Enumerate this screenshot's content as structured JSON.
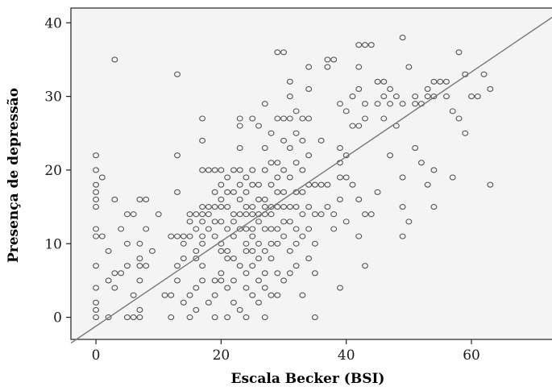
{
  "chart_data": {
    "type": "scatter",
    "title": "",
    "xlabel": "Escala Becker (BSI)",
    "ylabel": "Presença de depressão",
    "xlim": [
      -4,
      73
    ],
    "ylim": [
      -3,
      42
    ],
    "x_ticks": [
      0,
      20,
      40,
      60
    ],
    "y_ticks": [
      0,
      10,
      20,
      30,
      40
    ],
    "grid": false,
    "reference_line": {
      "x": [
        -4,
        73
      ],
      "y": [
        -3.5,
        40.8
      ]
    },
    "series": [
      {
        "points": [
          [
            0,
            0
          ],
          [
            0,
            1
          ],
          [
            0,
            2
          ],
          [
            0,
            4
          ],
          [
            0,
            7
          ],
          [
            0,
            11
          ],
          [
            0,
            12
          ],
          [
            0,
            15
          ],
          [
            0,
            16
          ],
          [
            0,
            17
          ],
          [
            0,
            18
          ],
          [
            0,
            20
          ],
          [
            0,
            22
          ],
          [
            1,
            19
          ],
          [
            1,
            11
          ],
          [
            2,
            5
          ],
          [
            2,
            9
          ],
          [
            2,
            0
          ],
          [
            3,
            35
          ],
          [
            3,
            4
          ],
          [
            3,
            6
          ],
          [
            3,
            16
          ],
          [
            4,
            6
          ],
          [
            4,
            12
          ],
          [
            5,
            10
          ],
          [
            5,
            0
          ],
          [
            5,
            7
          ],
          [
            5,
            14
          ],
          [
            6,
            0
          ],
          [
            6,
            3
          ],
          [
            6,
            14
          ],
          [
            7,
            0
          ],
          [
            7,
            7
          ],
          [
            7,
            8
          ],
          [
            7,
            10
          ],
          [
            7,
            16
          ],
          [
            7,
            5
          ],
          [
            7,
            1
          ],
          [
            8,
            7
          ],
          [
            8,
            12
          ],
          [
            8,
            16
          ],
          [
            9,
            9
          ],
          [
            10,
            14
          ],
          [
            11,
            3
          ],
          [
            12,
            3
          ],
          [
            12,
            11
          ],
          [
            12,
            0
          ],
          [
            13,
            33
          ],
          [
            13,
            22
          ],
          [
            13,
            17
          ],
          [
            13,
            11
          ],
          [
            13,
            7
          ],
          [
            13,
            5
          ],
          [
            14,
            10
          ],
          [
            14,
            8
          ],
          [
            14,
            11
          ],
          [
            14,
            2
          ],
          [
            15,
            14
          ],
          [
            15,
            13
          ],
          [
            15,
            11
          ],
          [
            15,
            3
          ],
          [
            15,
            0
          ],
          [
            16,
            14
          ],
          [
            16,
            12
          ],
          [
            16,
            9
          ],
          [
            16,
            8
          ],
          [
            16,
            4
          ],
          [
            16,
            1
          ],
          [
            17,
            27
          ],
          [
            17,
            24
          ],
          [
            17,
            20
          ],
          [
            17,
            15
          ],
          [
            17,
            14
          ],
          [
            17,
            13
          ],
          [
            17,
            11
          ],
          [
            17,
            10
          ],
          [
            17,
            7
          ],
          [
            17,
            5
          ],
          [
            18,
            20
          ],
          [
            18,
            15
          ],
          [
            18,
            14
          ],
          [
            18,
            12
          ],
          [
            18,
            2
          ],
          [
            19,
            20
          ],
          [
            19,
            17
          ],
          [
            19,
            15
          ],
          [
            19,
            13
          ],
          [
            19,
            11
          ],
          [
            19,
            5
          ],
          [
            19,
            3
          ],
          [
            19,
            0
          ],
          [
            20,
            20
          ],
          [
            20,
            18
          ],
          [
            20,
            16
          ],
          [
            20,
            15
          ],
          [
            20,
            13
          ],
          [
            20,
            10
          ],
          [
            20,
            9
          ],
          [
            20,
            6
          ],
          [
            20,
            5
          ],
          [
            21,
            19
          ],
          [
            21,
            17
          ],
          [
            21,
            15
          ],
          [
            21,
            12
          ],
          [
            21,
            9
          ],
          [
            21,
            8
          ],
          [
            21,
            4
          ],
          [
            21,
            0
          ],
          [
            22,
            20
          ],
          [
            22,
            17
          ],
          [
            22,
            14
          ],
          [
            22,
            13
          ],
          [
            22,
            11
          ],
          [
            22,
            8
          ],
          [
            22,
            5
          ],
          [
            22,
            2
          ],
          [
            23,
            27
          ],
          [
            23,
            26
          ],
          [
            23,
            23
          ],
          [
            23,
            20
          ],
          [
            23,
            18
          ],
          [
            23,
            16
          ],
          [
            23,
            14
          ],
          [
            23,
            12
          ],
          [
            23,
            7
          ],
          [
            23,
            1
          ],
          [
            24,
            19
          ],
          [
            24,
            17
          ],
          [
            24,
            15
          ],
          [
            24,
            14
          ],
          [
            24,
            12
          ],
          [
            24,
            10
          ],
          [
            24,
            9
          ],
          [
            24,
            6
          ],
          [
            24,
            4
          ],
          [
            24,
            0
          ],
          [
            25,
            27
          ],
          [
            25,
            20
          ],
          [
            25,
            18
          ],
          [
            25,
            15
          ],
          [
            25,
            14
          ],
          [
            25,
            12
          ],
          [
            25,
            11
          ],
          [
            25,
            9
          ],
          [
            25,
            7
          ],
          [
            25,
            3
          ],
          [
            26,
            26
          ],
          [
            26,
            18
          ],
          [
            26,
            16
          ],
          [
            26,
            14
          ],
          [
            26,
            13
          ],
          [
            26,
            10
          ],
          [
            26,
            8
          ],
          [
            26,
            5
          ],
          [
            26,
            2
          ],
          [
            27,
            29
          ],
          [
            27,
            23
          ],
          [
            27,
            20
          ],
          [
            27,
            16
          ],
          [
            27,
            15
          ],
          [
            27,
            14
          ],
          [
            27,
            12
          ],
          [
            27,
            9
          ],
          [
            27,
            6
          ],
          [
            27,
            4
          ],
          [
            27,
            0
          ],
          [
            28,
            25
          ],
          [
            28,
            21
          ],
          [
            28,
            18
          ],
          [
            28,
            15
          ],
          [
            28,
            14
          ],
          [
            28,
            12
          ],
          [
            28,
            10
          ],
          [
            28,
            8
          ],
          [
            28,
            3
          ],
          [
            29,
            36
          ],
          [
            29,
            27
          ],
          [
            29,
            21
          ],
          [
            29,
            19
          ],
          [
            29,
            17
          ],
          [
            29,
            15
          ],
          [
            29,
            12
          ],
          [
            29,
            10
          ],
          [
            29,
            6
          ],
          [
            29,
            3
          ],
          [
            30,
            36
          ],
          [
            30,
            27
          ],
          [
            30,
            24
          ],
          [
            30,
            20
          ],
          [
            30,
            17
          ],
          [
            30,
            15
          ],
          [
            30,
            13
          ],
          [
            30,
            11
          ],
          [
            30,
            5
          ],
          [
            31,
            32
          ],
          [
            31,
            30
          ],
          [
            31,
            27
          ],
          [
            31,
            23
          ],
          [
            31,
            19
          ],
          [
            31,
            15
          ],
          [
            31,
            13
          ],
          [
            31,
            9
          ],
          [
            31,
            6
          ],
          [
            32,
            28
          ],
          [
            32,
            25
          ],
          [
            32,
            21
          ],
          [
            32,
            17
          ],
          [
            32,
            15
          ],
          [
            32,
            12
          ],
          [
            32,
            10
          ],
          [
            32,
            7
          ],
          [
            33,
            27
          ],
          [
            33,
            24
          ],
          [
            33,
            20
          ],
          [
            33,
            17
          ],
          [
            33,
            14
          ],
          [
            33,
            11
          ],
          [
            33,
            3
          ],
          [
            34,
            34
          ],
          [
            34,
            31
          ],
          [
            34,
            27
          ],
          [
            34,
            22
          ],
          [
            34,
            18
          ],
          [
            34,
            15
          ],
          [
            34,
            12
          ],
          [
            34,
            8
          ],
          [
            35,
            18
          ],
          [
            35,
            14
          ],
          [
            35,
            10
          ],
          [
            35,
            6
          ],
          [
            35,
            0
          ],
          [
            36,
            24
          ],
          [
            36,
            18
          ],
          [
            36,
            14
          ],
          [
            37,
            34
          ],
          [
            37,
            35
          ],
          [
            37,
            18
          ],
          [
            37,
            15
          ],
          [
            38,
            35
          ],
          [
            38,
            14
          ],
          [
            38,
            12
          ],
          [
            39,
            29
          ],
          [
            39,
            23
          ],
          [
            39,
            21
          ],
          [
            39,
            19
          ],
          [
            39,
            16
          ],
          [
            39,
            4
          ],
          [
            40,
            28
          ],
          [
            40,
            22
          ],
          [
            40,
            19
          ],
          [
            40,
            13
          ],
          [
            41,
            30
          ],
          [
            41,
            26
          ],
          [
            41,
            18
          ],
          [
            42,
            34
          ],
          [
            42,
            37
          ],
          [
            42,
            31
          ],
          [
            42,
            26
          ],
          [
            42,
            16
          ],
          [
            42,
            11
          ],
          [
            43,
            37
          ],
          [
            43,
            29
          ],
          [
            43,
            27
          ],
          [
            43,
            14
          ],
          [
            43,
            7
          ],
          [
            44,
            37
          ],
          [
            44,
            14
          ],
          [
            45,
            32
          ],
          [
            45,
            29
          ],
          [
            45,
            17
          ],
          [
            46,
            32
          ],
          [
            46,
            30
          ],
          [
            46,
            27
          ],
          [
            47,
            31
          ],
          [
            47,
            29
          ],
          [
            47,
            22
          ],
          [
            48,
            30
          ],
          [
            48,
            26
          ],
          [
            49,
            38
          ],
          [
            49,
            29
          ],
          [
            49,
            19
          ],
          [
            49,
            15
          ],
          [
            49,
            11
          ],
          [
            50,
            34
          ],
          [
            50,
            13
          ],
          [
            51,
            30
          ],
          [
            51,
            29
          ],
          [
            51,
            23
          ],
          [
            52,
            29
          ],
          [
            52,
            21
          ],
          [
            53,
            31
          ],
          [
            53,
            30
          ],
          [
            53,
            18
          ],
          [
            54,
            32
          ],
          [
            54,
            30
          ],
          [
            54,
            20
          ],
          [
            54,
            15
          ],
          [
            55,
            32
          ],
          [
            56,
            32
          ],
          [
            56,
            30
          ],
          [
            57,
            28
          ],
          [
            57,
            19
          ],
          [
            58,
            36
          ],
          [
            58,
            27
          ],
          [
            59,
            33
          ],
          [
            59,
            25
          ],
          [
            60,
            30
          ],
          [
            61,
            30
          ],
          [
            62,
            33
          ],
          [
            63,
            31
          ],
          [
            63,
            18
          ]
        ]
      }
    ]
  }
}
